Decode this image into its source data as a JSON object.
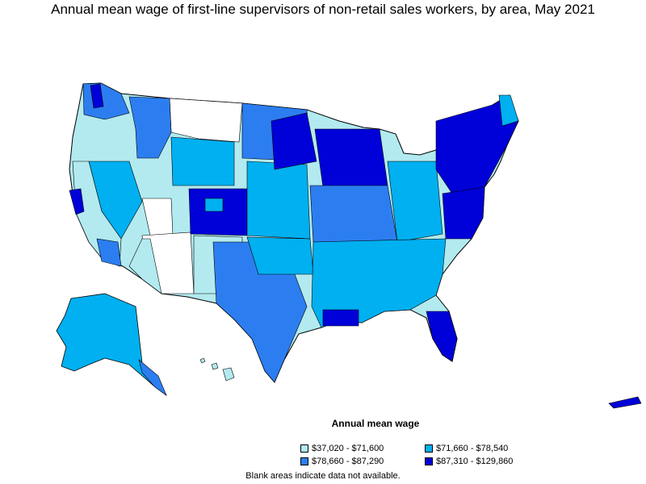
{
  "title": "Annual mean wage of first-line supervisors of non-retail sales workers, by area, May 2021",
  "legend": {
    "title": "Annual mean wage",
    "items": [
      {
        "label": "$37,020 - $71,600",
        "color": "#b2eaf0"
      },
      {
        "label": "$71,660 - $78,540",
        "color": "#00b0f0"
      },
      {
        "label": "$78,660 - $87,290",
        "color": "#2c7ef0"
      },
      {
        "label": "$87,310 - $129,860",
        "color": "#0000d8"
      }
    ]
  },
  "note": "Blank areas indicate data not available."
}
